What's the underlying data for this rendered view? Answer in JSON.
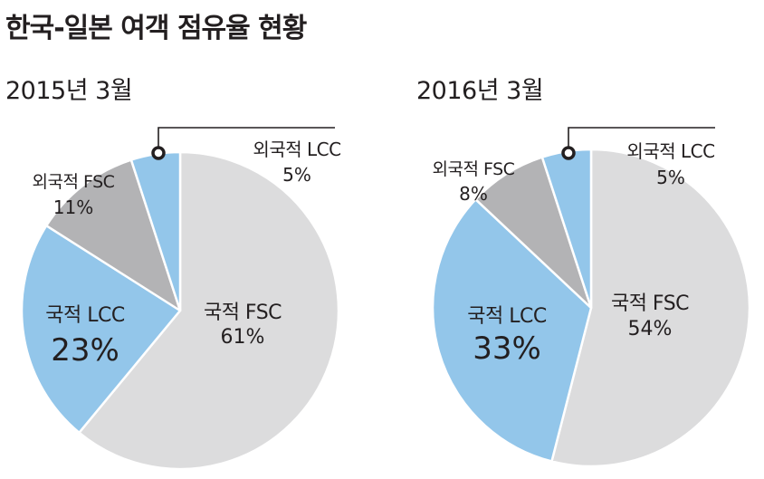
{
  "title": "한국-일본 여객 점유율 현황",
  "colors": {
    "domestic_fsc": "#dcdcdd",
    "domestic_lcc": "#93c6ea",
    "foreign_fsc": "#b3b3b5",
    "foreign_lcc": "#93c6ea",
    "divider": "#ffffff",
    "callout": "#231f20"
  },
  "chart_data": [
    {
      "type": "pie",
      "title": "2015년 3월",
      "slices": [
        {
          "label": "국적 FSC",
          "value": 61,
          "value_label": "61%"
        },
        {
          "label": "국적 LCC",
          "value": 23,
          "value_label": "23%"
        },
        {
          "label": "외국적 FSC",
          "value": 11,
          "value_label": "11%"
        },
        {
          "label": "외국적 LCC",
          "value": 5,
          "value_label": "5%"
        }
      ]
    },
    {
      "type": "pie",
      "title": "2016년 3월",
      "slices": [
        {
          "label": "국적 FSC",
          "value": 54,
          "value_label": "54%"
        },
        {
          "label": "국적 LCC",
          "value": 33,
          "value_label": "33%"
        },
        {
          "label": "외국적 FSC",
          "value": 8,
          "value_label": "8%"
        },
        {
          "label": "외국적 LCC",
          "value": 5,
          "value_label": "5%"
        }
      ]
    }
  ]
}
